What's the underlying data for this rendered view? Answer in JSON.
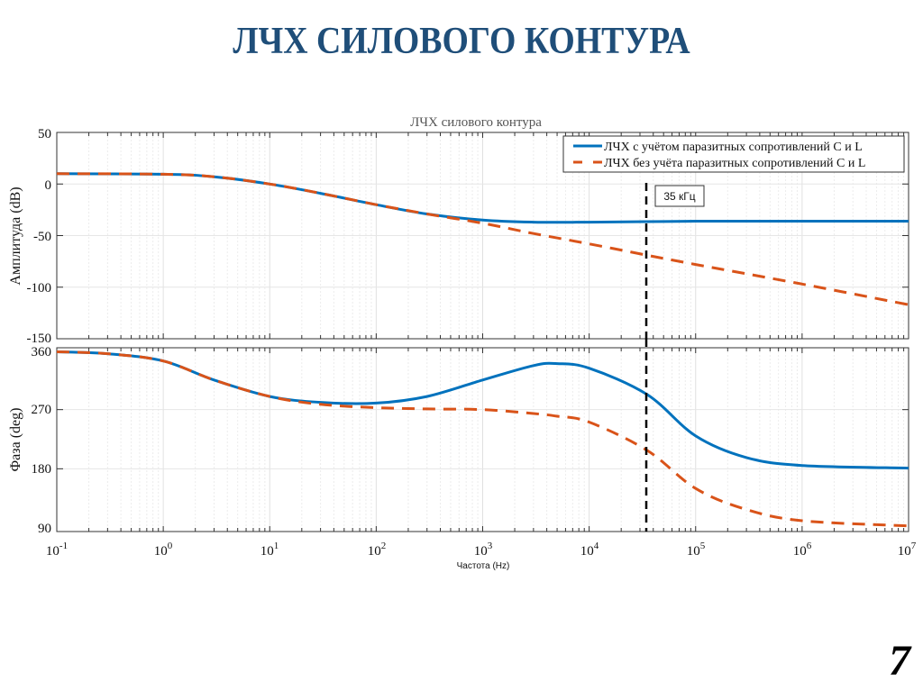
{
  "slide": {
    "title": "ЛЧХ СИЛОВОГО КОНТУРА",
    "page_number": "7"
  },
  "colors": {
    "title": "#1f4e79",
    "series_with_parasitic": "#0072bd",
    "series_without_parasitic": "#d95319",
    "marker_line": "#000000"
  },
  "chart_data": [
    {
      "type": "line",
      "title": "ЛЧХ силового контура",
      "xlabel": "Частота  (Hz)",
      "ylabel": "Амплитуда (dB)",
      "xscale": "log",
      "xlim": [
        0.1,
        10000000
      ],
      "ylim": [
        -150,
        50
      ],
      "yticks": [
        "50",
        "0",
        "-50",
        "-100",
        "-150"
      ],
      "xticks": [
        "10^-1",
        "10^0",
        "10^1",
        "10^2",
        "10^3",
        "10^4",
        "10^5",
        "10^6",
        "10^7"
      ],
      "grid": true,
      "legend_position": "top-right",
      "x": [
        0.1,
        1,
        3,
        10,
        30,
        100,
        300,
        1000,
        3000,
        10000,
        35000,
        100000,
        1000000,
        10000000
      ],
      "series": [
        {
          "name": "ЛЧХ с учётом паразитных сопротивлений C и L",
          "style": "solid",
          "values": [
            10,
            9.5,
            7,
            0,
            -9,
            -20,
            -29,
            -35,
            -37,
            -37,
            -36.5,
            -36,
            -36,
            -36
          ]
        },
        {
          "name": "ЛЧХ без учёта паразитных сопротивлений C и L",
          "style": "dashed",
          "values": [
            10,
            9.5,
            7,
            0,
            -9,
            -20,
            -29,
            -38,
            -48,
            -58,
            -69,
            -78,
            -97,
            -117
          ]
        }
      ],
      "annotations": [
        {
          "type": "vline",
          "x": 35000,
          "label": "35 кГц",
          "style": "dashed"
        }
      ]
    },
    {
      "type": "line",
      "xlabel": "Частота  (Hz)",
      "ylabel": "Фаза (deg)",
      "xscale": "log",
      "xlim": [
        0.1,
        10000000
      ],
      "ylim": [
        90,
        360
      ],
      "yticks": [
        "360",
        "270",
        "180",
        "90"
      ],
      "xticks": [
        "10^-1",
        "10^0",
        "10^1",
        "10^2",
        "10^3",
        "10^4",
        "10^5",
        "10^6",
        "10^7"
      ],
      "grid": true,
      "x": [
        0.1,
        0.3,
        1,
        3,
        10,
        30,
        100,
        300,
        1000,
        3000,
        5000,
        10000,
        35000,
        100000,
        300000,
        1000000,
        10000000
      ],
      "series": [
        {
          "name": "ЛЧХ с учётом паразитных сопротивлений C и L",
          "style": "solid",
          "values": [
            358,
            355,
            344,
            315,
            290,
            281,
            280,
            290,
            315,
            337,
            340,
            333,
            293,
            230,
            197,
            185,
            181
          ]
        },
        {
          "name": "ЛЧХ без учёта паразитных сопротивлений C и L",
          "style": "dashed",
          "values": [
            358,
            355,
            344,
            315,
            290,
            278,
            273,
            271,
            270,
            264,
            260,
            251,
            208,
            150,
            118,
            101,
            93
          ]
        }
      ],
      "annotations": [
        {
          "type": "vline",
          "x": 35000,
          "style": "dashed"
        }
      ]
    }
  ],
  "figure": {
    "title": "ЛЧХ силового контура",
    "legend": [
      "ЛЧХ с учётом паразитных сопротивлений C и L",
      "ЛЧХ без учёта паразитных сопротивлений C и L"
    ],
    "marker_label": "35 кГц",
    "top_ylabel": "Амплитуда (dB)",
    "bottom_ylabel": "Фаза (deg)",
    "xlabel": "Частота  (Hz)",
    "top_yticks": [
      "50",
      "0",
      "-50",
      "-100",
      "-150"
    ],
    "bottom_yticks": [
      "360",
      "270",
      "180",
      "90"
    ],
    "x_bases": [
      "10",
      "10",
      "10",
      "10",
      "10",
      "10",
      "10",
      "10",
      "10"
    ],
    "x_exps": [
      "-1",
      "0",
      "1",
      "2",
      "3",
      "4",
      "5",
      "6",
      "7"
    ]
  }
}
